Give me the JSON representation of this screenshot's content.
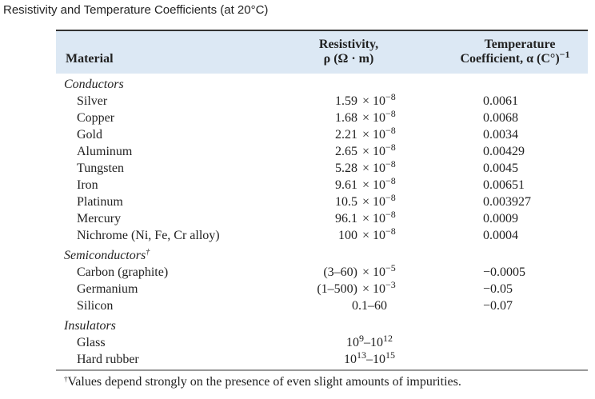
{
  "title": "Resistivity and Temperature Coefficients (at 20°C)",
  "header": {
    "material": "Material",
    "resistivity": [
      "Resistivity,",
      "ρ (Ω · m)"
    ],
    "coefficient": [
      "Temperature",
      "Coefficient, α (C°)",
      "−1"
    ]
  },
  "sections": [
    {
      "name": "Conductors",
      "rows": [
        {
          "material": "Silver",
          "resistivity": [
            "1.59",
            "× 10",
            "−8"
          ],
          "alpha": "0.0061"
        },
        {
          "material": "Copper",
          "resistivity": [
            "1.68",
            "× 10",
            "−8"
          ],
          "alpha": "0.0068"
        },
        {
          "material": "Gold",
          "resistivity": [
            "2.21",
            "× 10",
            "−8"
          ],
          "alpha": "0.0034"
        },
        {
          "material": "Aluminum",
          "resistivity": [
            "2.65",
            "× 10",
            "−8"
          ],
          "alpha": "0.00429"
        },
        {
          "material": "Tungsten",
          "resistivity": [
            "5.28",
            "× 10",
            "−8"
          ],
          "alpha": "0.0045"
        },
        {
          "material": "Iron",
          "resistivity": [
            "9.61",
            "× 10",
            "−8"
          ],
          "alpha": "0.00651"
        },
        {
          "material": "Platinum",
          "resistivity": [
            "10.5",
            "× 10",
            "−8"
          ],
          "alpha": "0.003927"
        },
        {
          "material": "Mercury",
          "resistivity": [
            "96.1",
            "× 10",
            "−8"
          ],
          "alpha": "0.0009"
        },
        {
          "material": "Nichrome (Ni, Fe, Cr alloy)",
          "resistivity": [
            "100",
            "× 10",
            "−8"
          ],
          "alpha": "0.0004"
        }
      ]
    },
    {
      "name": "Semiconductors",
      "mark": "†",
      "rows": [
        {
          "material": "Carbon (graphite)",
          "resistivity": [
            "(3–60)",
            "× 10",
            "−5"
          ],
          "alpha": "−0.0005"
        },
        {
          "material": "Germanium",
          "resistivity": [
            "(1–500)",
            "× 10",
            "−3"
          ],
          "alpha": "−0.05"
        },
        {
          "material": "Silicon",
          "resistivity": [
            "0.1–60"
          ],
          "alpha": "−0.07"
        }
      ]
    },
    {
      "name": "Insulators",
      "rows": [
        {
          "material": "Glass",
          "resistivity": [
            "10",
            "9",
            "–10",
            "12"
          ]
        },
        {
          "material": "Hard rubber",
          "resistivity": [
            "10",
            "13",
            "–10",
            "15"
          ]
        }
      ]
    }
  ],
  "footnote": {
    "mark": "†",
    "text": "Values depend strongly on the presence of even slight amounts of impurities."
  }
}
